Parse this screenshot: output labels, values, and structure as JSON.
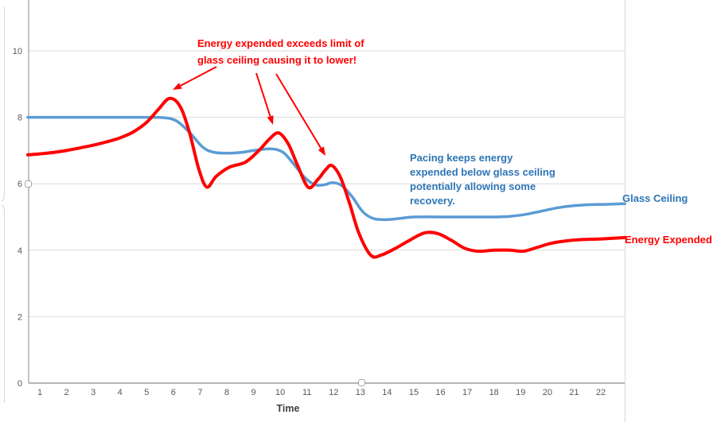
{
  "chart_data": {
    "type": "line",
    "title": "",
    "xlabel": "Time",
    "ylabel": "",
    "grid": true,
    "xlim": [
      0.55,
      22.9
    ],
    "ylim": [
      0,
      11.5
    ],
    "x_ticks": [
      1,
      2,
      3,
      4,
      5,
      6,
      7,
      8,
      9,
      10,
      11,
      12,
      13,
      14,
      15,
      16,
      17,
      18,
      19,
      20,
      21,
      22
    ],
    "y_ticks": [
      0,
      2,
      4,
      6,
      8,
      10
    ],
    "axis_colors": {
      "tick_label": "#595959",
      "gridline": "#d9d9d9",
      "axis_line": "#9b9b9b",
      "frame": "#dcdcdc",
      "xlabel_color": "#404040"
    },
    "series": [
      {
        "name": "Glass Ceiling",
        "color": "#5B9BD5",
        "label_color": "#2E75B6",
        "stroke_width": 3.5,
        "points": [
          [
            0.55,
            8.0
          ],
          [
            1,
            8.0
          ],
          [
            2,
            8.0
          ],
          [
            3,
            8.0
          ],
          [
            4,
            8.0
          ],
          [
            5,
            8.0
          ],
          [
            5.6,
            7.99
          ],
          [
            6.1,
            7.9
          ],
          [
            6.6,
            7.55
          ],
          [
            7.1,
            7.1
          ],
          [
            7.5,
            6.95
          ],
          [
            8,
            6.92
          ],
          [
            8.5,
            6.94
          ],
          [
            9,
            7.0
          ],
          [
            9.65,
            7.05
          ],
          [
            10.1,
            6.95
          ],
          [
            10.5,
            6.6
          ],
          [
            10.9,
            6.2
          ],
          [
            11.3,
            5.97
          ],
          [
            11.65,
            5.97
          ],
          [
            11.95,
            6.03
          ],
          [
            12.3,
            5.95
          ],
          [
            12.7,
            5.6
          ],
          [
            13.1,
            5.15
          ],
          [
            13.5,
            4.95
          ],
          [
            14,
            4.92
          ],
          [
            14.5,
            4.96
          ],
          [
            15,
            5.0
          ],
          [
            16,
            5.0
          ],
          [
            17,
            5.0
          ],
          [
            18,
            5.0
          ],
          [
            18.6,
            5.02
          ],
          [
            19.2,
            5.08
          ],
          [
            19.8,
            5.18
          ],
          [
            20.4,
            5.28
          ],
          [
            21,
            5.34
          ],
          [
            21.6,
            5.37
          ],
          [
            22.2,
            5.38
          ],
          [
            22.9,
            5.4
          ]
        ]
      },
      {
        "name": "Energy Expended",
        "color": "#FF0000",
        "label_color": "#FF0000",
        "stroke_width": 4,
        "points": [
          [
            0.55,
            6.87
          ],
          [
            1,
            6.9
          ],
          [
            1.5,
            6.94
          ],
          [
            2,
            7.0
          ],
          [
            2.5,
            7.08
          ],
          [
            3,
            7.16
          ],
          [
            3.5,
            7.26
          ],
          [
            4,
            7.38
          ],
          [
            4.5,
            7.56
          ],
          [
            5,
            7.85
          ],
          [
            5.45,
            8.25
          ],
          [
            5.86,
            8.57
          ],
          [
            6.25,
            8.33
          ],
          [
            6.6,
            7.55
          ],
          [
            6.95,
            6.45
          ],
          [
            7.25,
            5.9
          ],
          [
            7.6,
            6.22
          ],
          [
            8.1,
            6.5
          ],
          [
            8.7,
            6.65
          ],
          [
            9.2,
            7.0
          ],
          [
            9.6,
            7.35
          ],
          [
            9.94,
            7.53
          ],
          [
            10.3,
            7.2
          ],
          [
            10.65,
            6.55
          ],
          [
            11.05,
            5.89
          ],
          [
            11.4,
            6.12
          ],
          [
            11.7,
            6.42
          ],
          [
            11.93,
            6.55
          ],
          [
            12.25,
            6.2
          ],
          [
            12.6,
            5.4
          ],
          [
            12.95,
            4.5
          ],
          [
            13.4,
            3.84
          ],
          [
            13.8,
            3.86
          ],
          [
            14.3,
            4.05
          ],
          [
            14.8,
            4.28
          ],
          [
            15.4,
            4.52
          ],
          [
            15.9,
            4.5
          ],
          [
            16.4,
            4.3
          ],
          [
            16.9,
            4.06
          ],
          [
            17.4,
            3.97
          ],
          [
            18,
            4.0
          ],
          [
            18.6,
            4.0
          ],
          [
            19.1,
            3.97
          ],
          [
            19.6,
            4.08
          ],
          [
            20.1,
            4.2
          ],
          [
            20.7,
            4.28
          ],
          [
            21.3,
            4.32
          ],
          [
            22,
            4.34
          ],
          [
            22.9,
            4.38
          ]
        ]
      }
    ],
    "annotations": [
      {
        "id": "red_note",
        "text": "Energy expended exceeds limit of\nglass ceiling causing it to lower!",
        "color": "#FF0000"
      },
      {
        "id": "blue_note",
        "text": "Pacing keeps energy\nexpended below glass ceiling\npotentially allowing some\nrecovery.",
        "color": "#2E75B6"
      }
    ],
    "arrows": [
      {
        "from": [
          272,
          84
        ],
        "to": [
          217,
          113
        ],
        "color": "#FF0000"
      },
      {
        "from": [
          322,
          92
        ],
        "to": [
          343,
          157
        ],
        "color": "#FF0000"
      },
      {
        "from": [
          347,
          93
        ],
        "to": [
          409,
          196
        ],
        "color": "#FF0000"
      }
    ]
  }
}
